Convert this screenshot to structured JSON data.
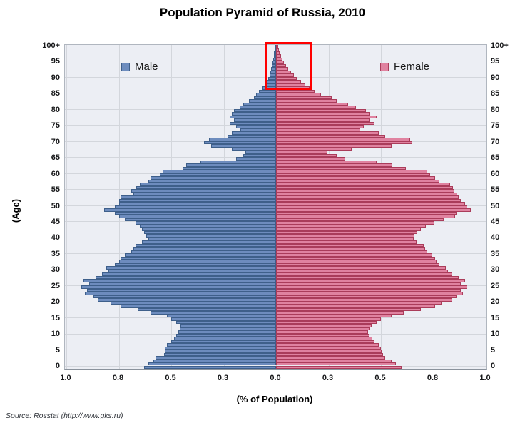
{
  "title": "Population Pyramid of Russia, 2010",
  "source": "Source: Rosstat  (http://www.gks.ru)",
  "legend": {
    "male": "Male",
    "female": "Female"
  },
  "axes": {
    "y_title": "(Age)",
    "x_title": "(% of Population)",
    "y_tick_labels": [
      "0",
      "5",
      "10",
      "15",
      "20",
      "25",
      "30",
      "35",
      "40",
      "45",
      "50",
      "55",
      "60",
      "65",
      "70",
      "75",
      "80",
      "85",
      "90",
      "95",
      "100+"
    ],
    "x_tick_labels_left_to_right": [
      "1.0",
      "0.8",
      "0.5",
      "0.3",
      "0.0",
      "0.3",
      "0.5",
      "0.8",
      "1.0"
    ]
  },
  "colors": {
    "male_fill": "#6d8cbe",
    "male_border": "#3e5f8a",
    "female_fill": "#e082a0",
    "female_border": "#aa3c5a",
    "plot_background": "#eceef4",
    "gridline": "#d3d6dc",
    "highlight": "#ff0000"
  },
  "annotation": {
    "shape": "red-rectangle",
    "description": "Red box highlighting the oldest ages (~86 to 100+) at the top center of the pyramid",
    "age_range": "86-100+"
  },
  "chart_data": {
    "type": "bar",
    "subtype": "population-pyramid",
    "title": "Population Pyramid of Russia, 2010",
    "xlabel": "(% of Population)",
    "ylabel": "(Age)",
    "x_range_percent_per_side": [
      0,
      1.0
    ],
    "gridline_step_percent": 0.25,
    "legend_position": "inside-top",
    "categories": [
      "0",
      "1",
      "2",
      "3",
      "4",
      "5",
      "6",
      "7",
      "8",
      "9",
      "10",
      "11",
      "12",
      "13",
      "14",
      "15",
      "16",
      "17",
      "18",
      "19",
      "20",
      "21",
      "22",
      "23",
      "24",
      "25",
      "26",
      "27",
      "28",
      "29",
      "30",
      "31",
      "32",
      "33",
      "34",
      "35",
      "36",
      "37",
      "38",
      "39",
      "40",
      "41",
      "42",
      "43",
      "44",
      "45",
      "46",
      "47",
      "48",
      "49",
      "50",
      "51",
      "52",
      "53",
      "54",
      "55",
      "56",
      "57",
      "58",
      "59",
      "60",
      "61",
      "62",
      "63",
      "64",
      "65",
      "66",
      "67",
      "68",
      "69",
      "70",
      "71",
      "72",
      "73",
      "74",
      "75",
      "76",
      "77",
      "78",
      "79",
      "80",
      "81",
      "82",
      "83",
      "84",
      "85",
      "86",
      "87",
      "88",
      "89",
      "90",
      "91",
      "92",
      "93",
      "94",
      "95",
      "96",
      "97",
      "98",
      "99",
      "100+"
    ],
    "series": [
      {
        "name": "Male",
        "side": "left",
        "values": [
          0.63,
          0.61,
          0.585,
          0.575,
          0.535,
          0.53,
          0.53,
          0.52,
          0.5,
          0.485,
          0.475,
          0.465,
          0.46,
          0.455,
          0.475,
          0.5,
          0.52,
          0.6,
          0.66,
          0.74,
          0.79,
          0.85,
          0.87,
          0.91,
          0.9,
          0.93,
          0.89,
          0.92,
          0.86,
          0.83,
          0.8,
          0.81,
          0.77,
          0.75,
          0.74,
          0.72,
          0.69,
          0.68,
          0.67,
          0.64,
          0.61,
          0.62,
          0.63,
          0.64,
          0.65,
          0.67,
          0.72,
          0.75,
          0.77,
          0.82,
          0.77,
          0.75,
          0.75,
          0.74,
          0.68,
          0.69,
          0.665,
          0.65,
          0.61,
          0.6,
          0.555,
          0.54,
          0.445,
          0.43,
          0.36,
          0.19,
          0.155,
          0.145,
          0.21,
          0.31,
          0.345,
          0.32,
          0.23,
          0.21,
          0.17,
          0.19,
          0.22,
          0.2,
          0.22,
          0.21,
          0.2,
          0.175,
          0.155,
          0.13,
          0.105,
          0.095,
          0.08,
          0.065,
          0.055,
          0.045,
          0.038,
          0.032,
          0.027,
          0.023,
          0.019,
          0.016,
          0.013,
          0.011,
          0.009,
          0.008,
          0.007
        ]
      },
      {
        "name": "Female",
        "side": "right",
        "values": [
          0.6,
          0.57,
          0.55,
          0.52,
          0.51,
          0.505,
          0.5,
          0.49,
          0.47,
          0.46,
          0.445,
          0.44,
          0.45,
          0.455,
          0.48,
          0.5,
          0.55,
          0.61,
          0.69,
          0.76,
          0.79,
          0.84,
          0.86,
          0.89,
          0.88,
          0.91,
          0.88,
          0.9,
          0.87,
          0.84,
          0.82,
          0.81,
          0.78,
          0.765,
          0.757,
          0.744,
          0.72,
          0.71,
          0.705,
          0.67,
          0.655,
          0.66,
          0.675,
          0.69,
          0.715,
          0.754,
          0.8,
          0.855,
          0.86,
          0.93,
          0.91,
          0.9,
          0.88,
          0.87,
          0.865,
          0.85,
          0.845,
          0.83,
          0.78,
          0.76,
          0.735,
          0.72,
          0.62,
          0.555,
          0.48,
          0.33,
          0.29,
          0.245,
          0.36,
          0.55,
          0.65,
          0.64,
          0.52,
          0.49,
          0.4,
          0.42,
          0.47,
          0.45,
          0.48,
          0.45,
          0.43,
          0.38,
          0.345,
          0.29,
          0.265,
          0.215,
          0.185,
          0.16,
          0.14,
          0.12,
          0.1,
          0.085,
          0.07,
          0.058,
          0.047,
          0.038,
          0.03,
          0.024,
          0.018,
          0.013,
          0.01
        ]
      }
    ]
  }
}
